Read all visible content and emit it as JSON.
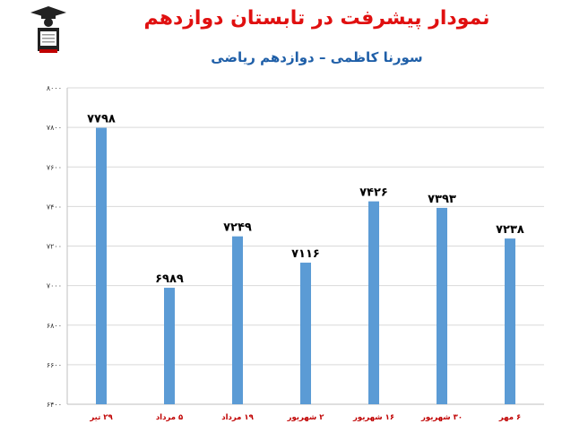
{
  "header": {
    "title": "نمودار پیشرفت در تابستان دوازدهم",
    "subtitle": "سورنا کاظمی – دوازدهم ریاضی"
  },
  "logo": {
    "icon": "graduate-figure-icon"
  },
  "chart_data": {
    "type": "bar",
    "title": "نمودار پیشرفت در تابستان دوازدهم",
    "subtitle": "سورنا کاظمی – دوازدهم ریاضی",
    "categories": [
      "۲۹ تیر",
      "۵ مرداد",
      "۱۹ مرداد",
      "۲ شهریور",
      "۱۶ شهریور",
      "۳۰ شهریور",
      "۶ مهر"
    ],
    "values": [
      7798,
      6989,
      7249,
      7116,
      7426,
      7393,
      7238
    ],
    "value_labels": [
      "۷۷۹۸",
      "۶۹۸۹",
      "۷۲۴۹",
      "۷۱۱۶",
      "۷۴۲۶",
      "۷۳۹۳",
      "۷۲۳۸"
    ],
    "ylim": [
      6400,
      8000
    ],
    "yticks": [
      6400,
      6600,
      6800,
      7000,
      7200,
      7400,
      7600,
      7800,
      8000
    ],
    "ytick_labels": [
      "۶۴۰۰",
      "۶۶۰۰",
      "۶۸۰۰",
      "۷۰۰۰",
      "۷۲۰۰",
      "۷۴۰۰",
      "۷۶۰۰",
      "۷۸۰۰",
      "۸۰۰۰"
    ],
    "grid": true,
    "bar_color": "#5b9bd5",
    "xlabel": "",
    "ylabel": ""
  }
}
